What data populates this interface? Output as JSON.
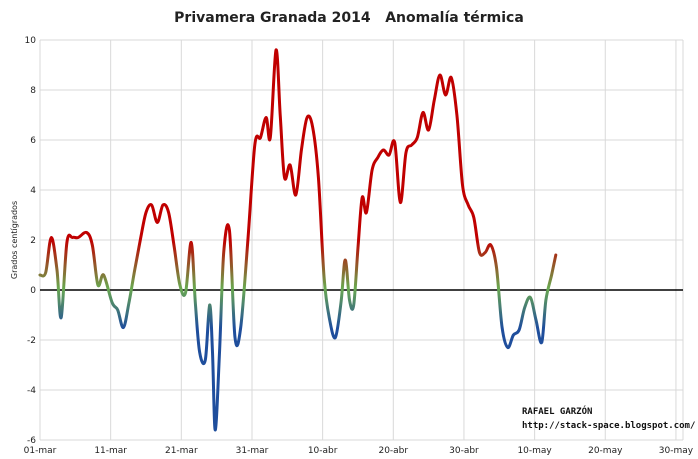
{
  "chart_data": {
    "type": "line",
    "title": "Privamera Granada 2014   Anomalía térmica",
    "ylabel": "Grados centígrados",
    "xlabel": "",
    "ylim": [
      -6,
      10
    ],
    "yticks": [
      10,
      8,
      6,
      4,
      2,
      0,
      -2,
      -4,
      -6
    ],
    "xtick_labels": [
      "01-mar",
      "11-mar",
      "21-mar",
      "31-mar",
      "10-abr",
      "20-abr",
      "30-abr",
      "10-may",
      "20-may",
      "30-may"
    ],
    "xtick_day_index": [
      0,
      10,
      20,
      30,
      40,
      50,
      60,
      70,
      80,
      90
    ],
    "x_range_days": [
      0,
      91
    ],
    "grid": true,
    "zero_line": true,
    "gradient_colors": {
      "high": "#c00000",
      "mid": "#6aa84f",
      "low": "#1f4e9c"
    },
    "series": [
      {
        "name": "",
        "points": [
          [
            0.0,
            0.6
          ],
          [
            0.8,
            0.7
          ],
          [
            1.6,
            2.1
          ],
          [
            2.4,
            0.8
          ],
          [
            3.0,
            -1.1
          ],
          [
            3.8,
            1.9
          ],
          [
            4.6,
            2.1
          ],
          [
            5.4,
            2.1
          ],
          [
            6.6,
            2.3
          ],
          [
            7.4,
            1.8
          ],
          [
            8.2,
            0.2
          ],
          [
            9.0,
            0.6
          ],
          [
            10.2,
            -0.5
          ],
          [
            11.0,
            -0.8
          ],
          [
            11.8,
            -1.5
          ],
          [
            12.6,
            -0.5
          ],
          [
            13.4,
            0.8
          ],
          [
            14.2,
            2.0
          ],
          [
            15.0,
            3.1
          ],
          [
            15.8,
            3.4
          ],
          [
            16.6,
            2.7
          ],
          [
            17.4,
            3.4
          ],
          [
            18.2,
            3.1
          ],
          [
            19.0,
            1.7
          ],
          [
            19.8,
            0.2
          ],
          [
            20.6,
            -0.1
          ],
          [
            21.4,
            1.9
          ],
          [
            22.0,
            -0.6
          ],
          [
            22.6,
            -2.5
          ],
          [
            23.4,
            -2.8
          ],
          [
            24.0,
            -0.6
          ],
          [
            24.4,
            -2.4
          ],
          [
            24.8,
            -5.6
          ],
          [
            25.4,
            -2.5
          ],
          [
            26.0,
            1.5
          ],
          [
            26.8,
            2.4
          ],
          [
            27.6,
            -1.9
          ],
          [
            28.4,
            -1.5
          ],
          [
            29.4,
            1.9
          ],
          [
            30.4,
            5.8
          ],
          [
            31.2,
            6.1
          ],
          [
            32.0,
            6.9
          ],
          [
            32.6,
            6.1
          ],
          [
            33.4,
            9.6
          ],
          [
            34.0,
            7.0
          ],
          [
            34.6,
            4.5
          ],
          [
            35.4,
            5.0
          ],
          [
            36.2,
            3.8
          ],
          [
            37.0,
            5.6
          ],
          [
            37.8,
            6.9
          ],
          [
            38.6,
            6.5
          ],
          [
            39.4,
            4.5
          ],
          [
            40.2,
            0.5
          ],
          [
            41.0,
            -1.2
          ],
          [
            41.8,
            -1.9
          ],
          [
            42.6,
            -0.5
          ],
          [
            43.2,
            1.2
          ],
          [
            43.8,
            -0.4
          ],
          [
            44.4,
            -0.6
          ],
          [
            45.0,
            1.7
          ],
          [
            45.6,
            3.7
          ],
          [
            46.2,
            3.1
          ],
          [
            47.0,
            4.8
          ],
          [
            47.8,
            5.3
          ],
          [
            48.6,
            5.6
          ],
          [
            49.4,
            5.4
          ],
          [
            50.2,
            5.9
          ],
          [
            51.0,
            3.5
          ],
          [
            51.8,
            5.5
          ],
          [
            52.6,
            5.8
          ],
          [
            53.4,
            6.1
          ],
          [
            54.2,
            7.1
          ],
          [
            55.0,
            6.4
          ],
          [
            55.8,
            7.6
          ],
          [
            56.6,
            8.6
          ],
          [
            57.4,
            7.8
          ],
          [
            58.2,
            8.5
          ],
          [
            59.0,
            7.0
          ],
          [
            59.8,
            4.2
          ],
          [
            60.6,
            3.4
          ],
          [
            61.4,
            2.9
          ],
          [
            62.2,
            1.5
          ],
          [
            63.0,
            1.5
          ],
          [
            63.8,
            1.8
          ],
          [
            64.6,
            0.9
          ],
          [
            65.4,
            -1.5
          ],
          [
            66.2,
            -2.3
          ],
          [
            67.0,
            -1.8
          ],
          [
            67.8,
            -1.6
          ],
          [
            68.6,
            -0.7
          ],
          [
            69.4,
            -0.3
          ],
          [
            70.2,
            -1.2
          ],
          [
            71.0,
            -2.1
          ],
          [
            71.6,
            -0.4
          ],
          [
            72.4,
            0.6
          ],
          [
            73.0,
            1.4
          ]
        ]
      }
    ]
  },
  "credit": {
    "author": "RAFAEL GARZÓN",
    "url": "http://stack-space.blogspot.com/"
  }
}
